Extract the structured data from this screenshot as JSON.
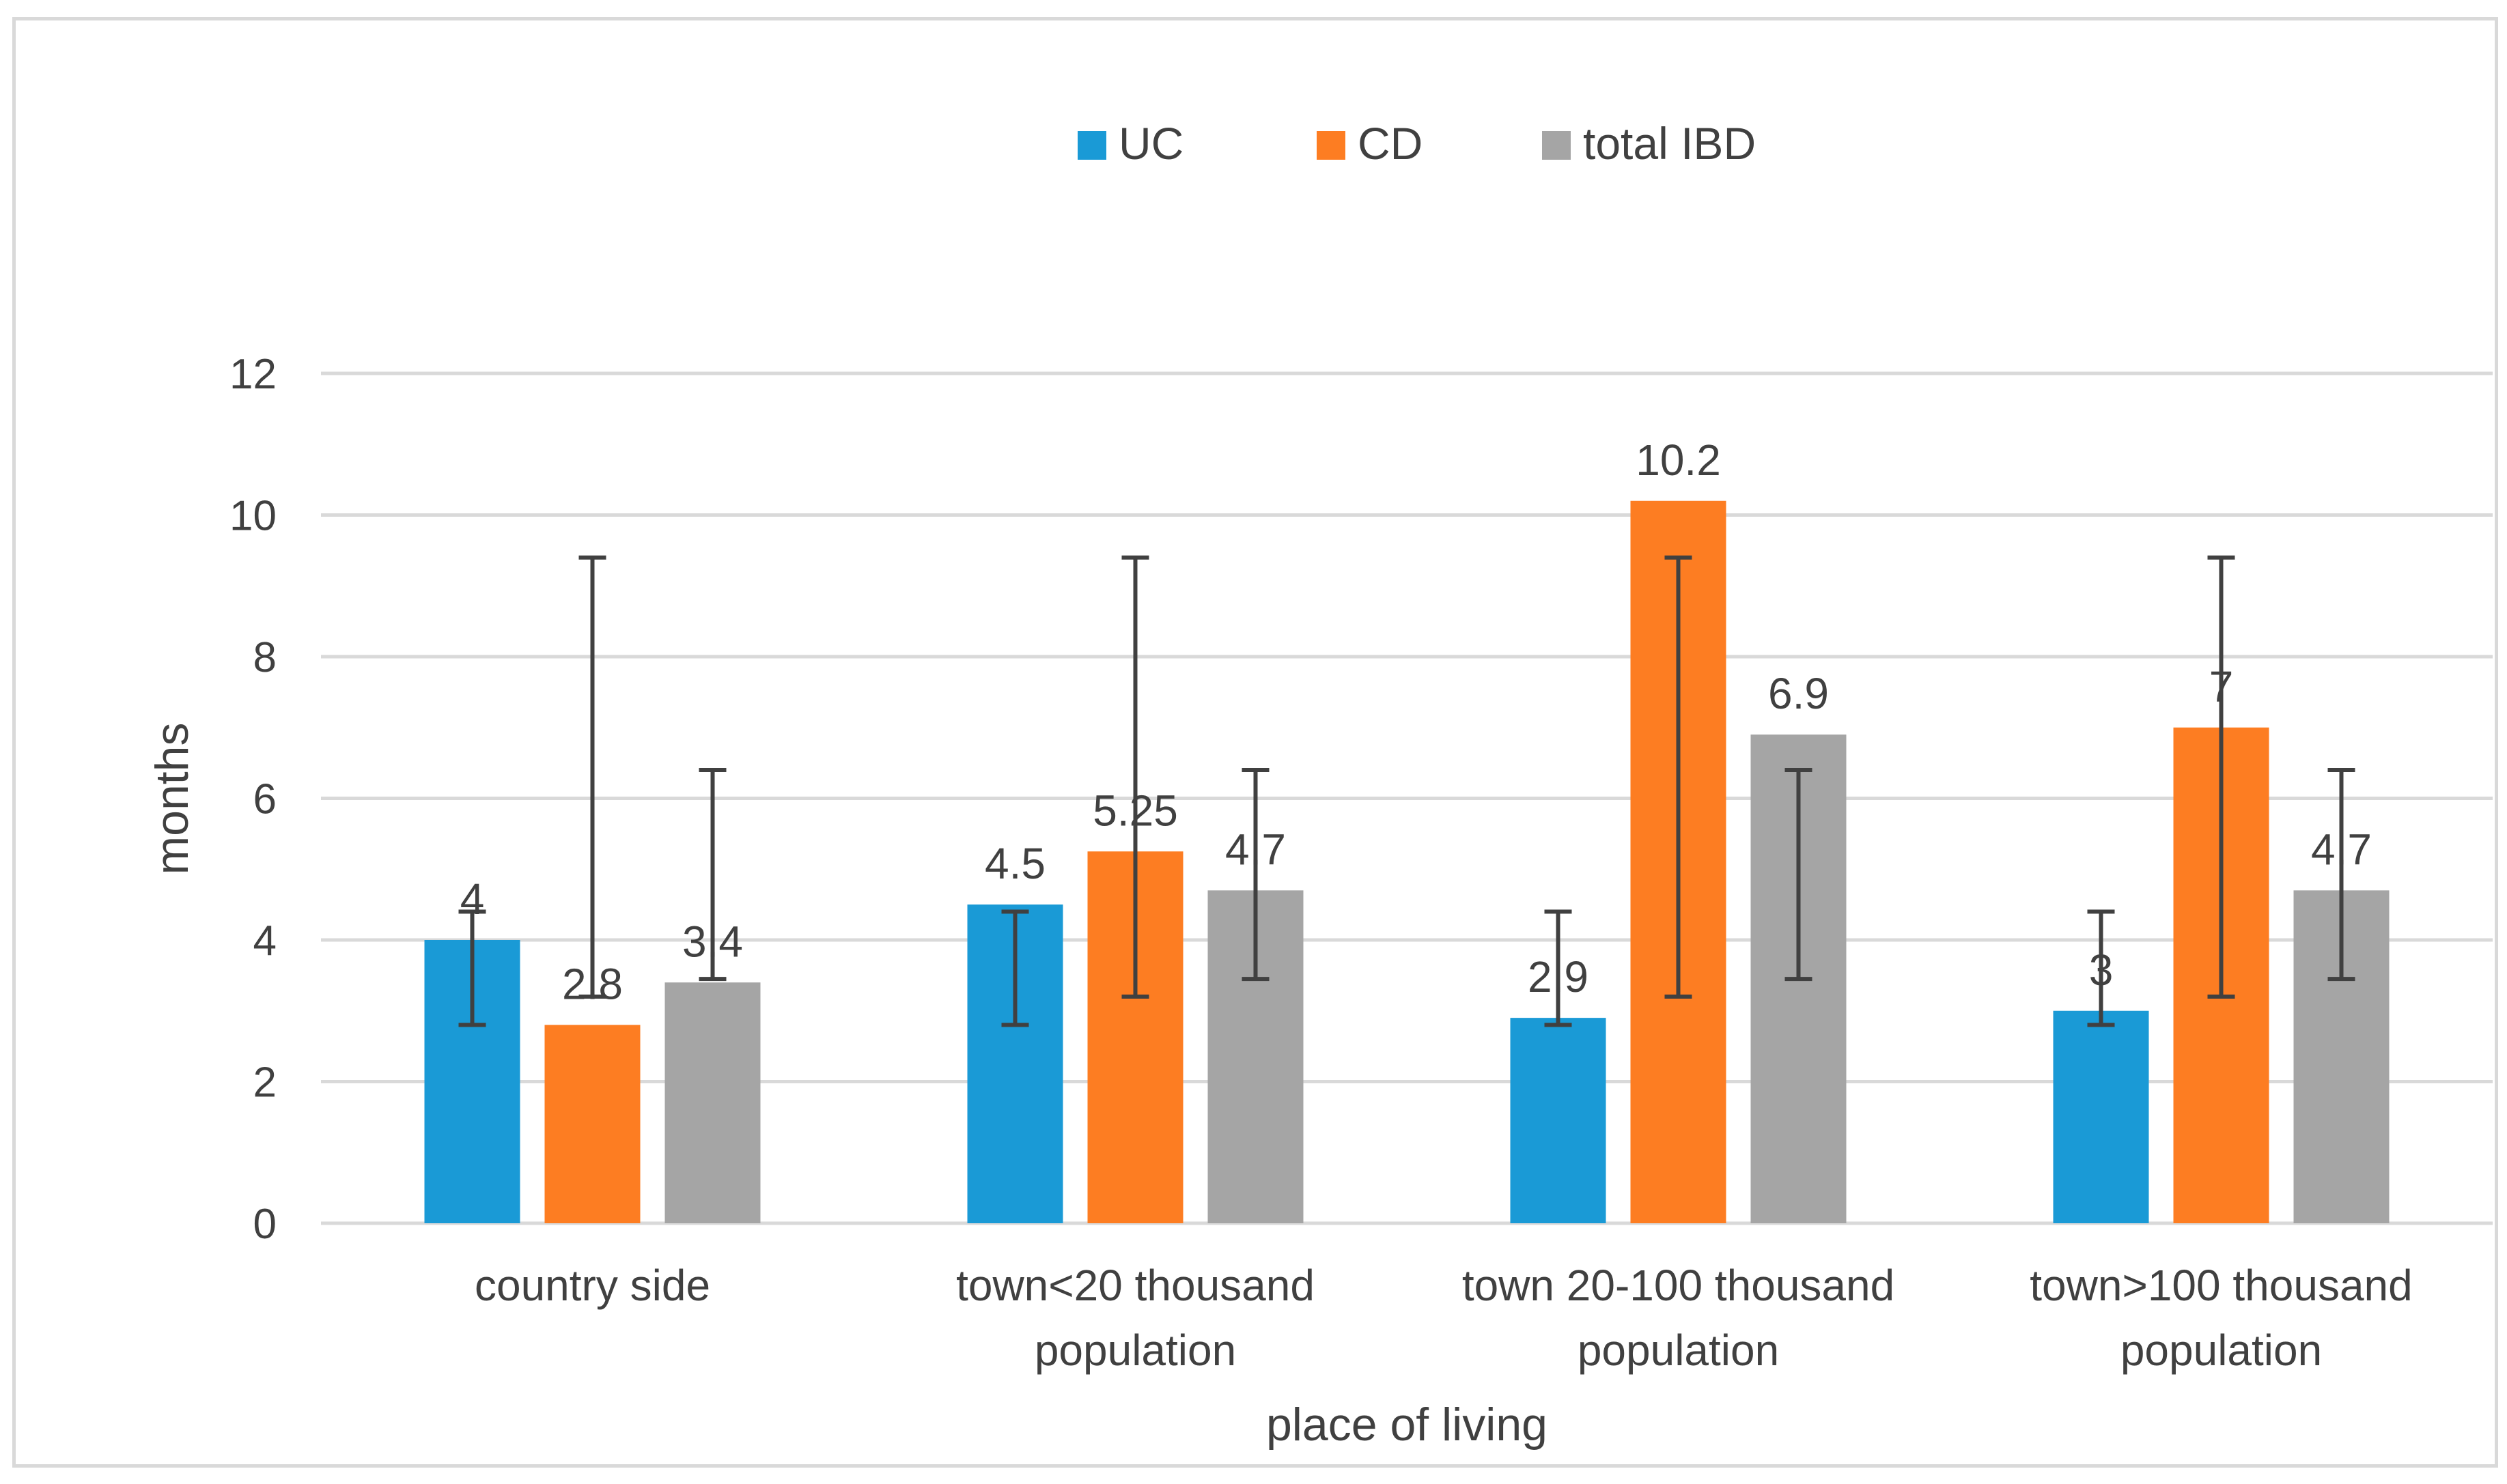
{
  "chart_data": {
    "type": "bar",
    "title": "",
    "xlabel": "place of living",
    "ylabel": "months",
    "ylim": [
      0,
      12
    ],
    "yticks": [
      0,
      2,
      4,
      6,
      8,
      10,
      12
    ],
    "grid": true,
    "legend_position": "top-center",
    "categories": [
      [
        "country side"
      ],
      [
        "town<20 thousand",
        "population"
      ],
      [
        "town 20-100 thousand",
        "population"
      ],
      [
        "town>100 thousand",
        "population"
      ]
    ],
    "series": [
      {
        "name": "UC",
        "color": "#1a9ad6",
        "values": [
          4,
          4.5,
          2.9,
          3
        ],
        "labels": [
          "4",
          "4.5",
          "2.9",
          "3"
        ],
        "error_low": [
          2.8,
          2.8,
          2.8,
          2.8
        ],
        "error_high": [
          4.4,
          4.4,
          4.4,
          4.4
        ]
      },
      {
        "name": "CD",
        "color": "#fd7d22",
        "values": [
          2.8,
          5.25,
          10.2,
          7
        ],
        "labels": [
          "2.8",
          "5.25",
          "10.2",
          "7"
        ],
        "error_low": [
          3.2,
          3.2,
          3.2,
          3.2
        ],
        "error_high": [
          9.4,
          9.4,
          9.4,
          9.4
        ]
      },
      {
        "name": "total IBD",
        "color": "#a5a5a5",
        "values": [
          3.4,
          4.7,
          6.9,
          4.7
        ],
        "labels": [
          "3.4",
          "4.7",
          "6.9",
          "4.7"
        ],
        "error_low": [
          3.45,
          3.45,
          3.45,
          3.45
        ],
        "error_high": [
          6.4,
          6.4,
          6.4,
          6.4
        ]
      }
    ],
    "gridline_color": "#d9d9d9",
    "errorbar_color": "#404040"
  }
}
